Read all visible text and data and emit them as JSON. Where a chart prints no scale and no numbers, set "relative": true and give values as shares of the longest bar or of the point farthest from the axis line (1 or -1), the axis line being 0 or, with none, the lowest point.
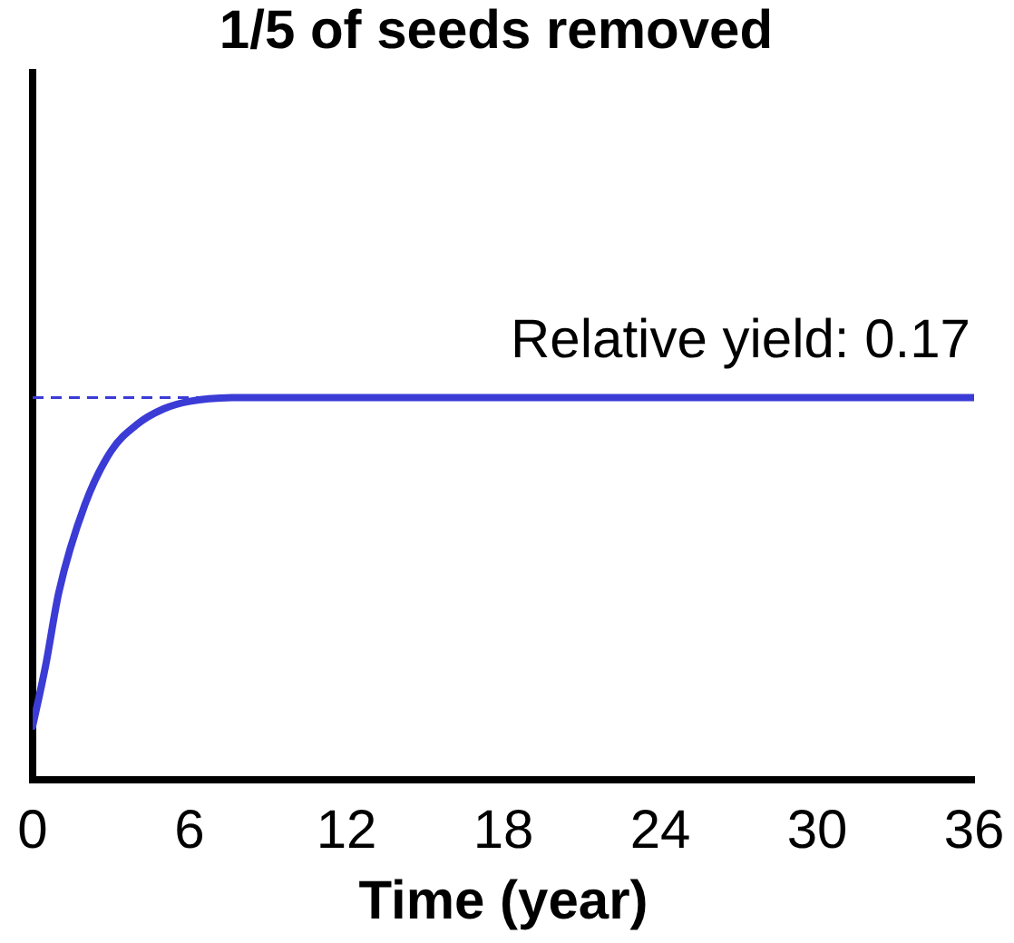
{
  "chart_data": {
    "type": "line",
    "title": "1/5 of seeds removed",
    "xlabel": "Time (year)",
    "relative": true,
    "series": [
      {
        "color": "#3b3bd6",
        "x": [
          0,
          0.5,
          1,
          2,
          3,
          4,
          5,
          6,
          8,
          12,
          18,
          24,
          30,
          36
        ],
        "values": [
          0.14,
          0.3,
          0.49,
          0.72,
          0.86,
          0.93,
          0.97,
          0.99,
          1,
          1,
          1,
          1,
          1,
          1
        ]
      }
    ],
    "xlim": [
      0,
      36
    ],
    "xticks": [
      0,
      6,
      12,
      18,
      24,
      30,
      36
    ],
    "ref_lines": [
      {
        "axis": "y",
        "value": 1,
        "color": "#3b3bd6",
        "line_style": "dashed"
      }
    ],
    "annotations": [
      "Relative yield: 0.17"
    ],
    "grid": false,
    "legend": false,
    "marker": "none",
    "line_style": "solid"
  }
}
